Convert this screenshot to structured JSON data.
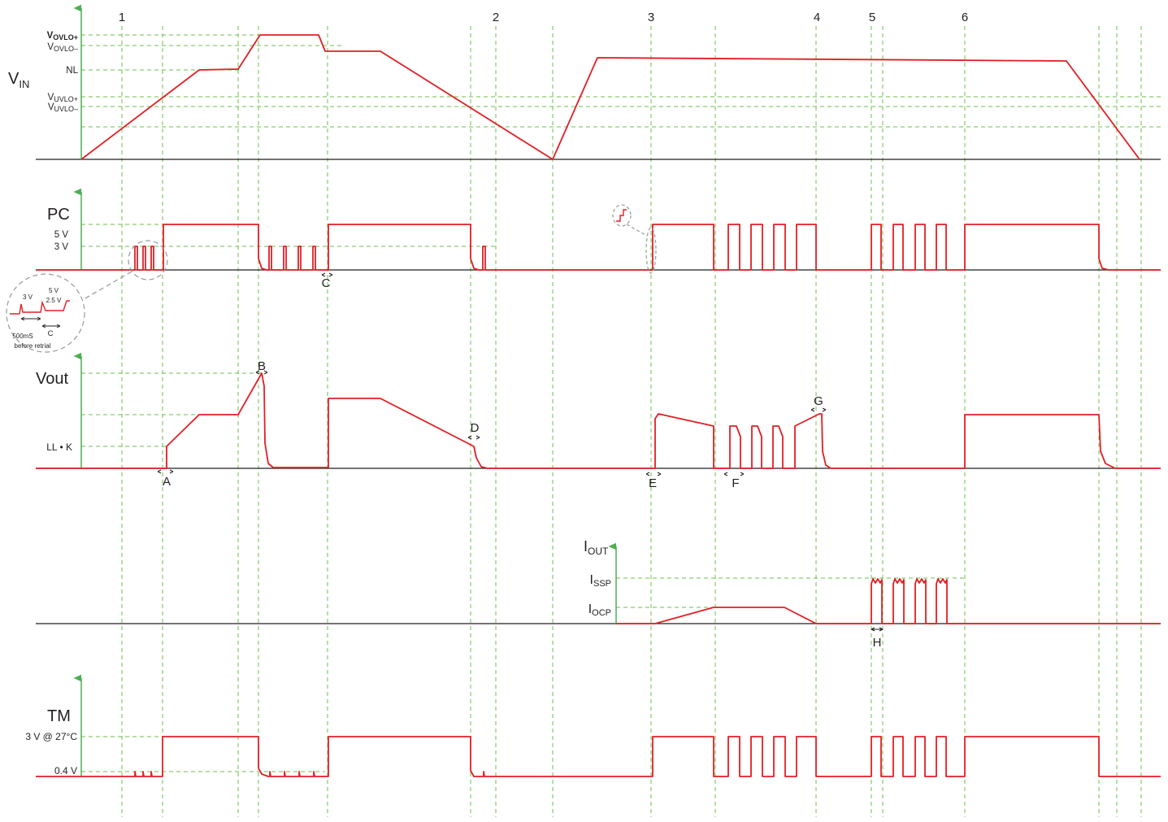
{
  "colors": {
    "trace": "#e31e24",
    "grid": "#6cbf4b",
    "axis": "#4caf50",
    "baseline": "#231f20",
    "callout": "#999999",
    "text": "#231f20"
  },
  "event_numbers": [
    "1",
    "2",
    "3",
    "4",
    "5",
    "6"
  ],
  "vin": {
    "name": "V",
    "name_sub": "IN",
    "levels": [
      {
        "main": "V",
        "sub": "OVLO+"
      },
      {
        "main": "V",
        "sub": "OVLO–"
      },
      {
        "main": "NL",
        "sub": ""
      },
      {
        "main": "V",
        "sub": "UVLO+"
      },
      {
        "main": "V",
        "sub": "UVLO–"
      }
    ]
  },
  "pc": {
    "name": "PC",
    "levels": [
      "5 V",
      "3 V"
    ],
    "markers": [
      "C"
    ],
    "inset": {
      "l3": "3 V",
      "l5": "5 V",
      "l25": "2.5 V",
      "c": "C",
      "n1": "500mS",
      "n2": "before retrial"
    }
  },
  "vout": {
    "name": "Vout",
    "levels": [
      "LL • K"
    ],
    "markers": [
      "A",
      "B",
      "D",
      "E",
      "F",
      "G"
    ]
  },
  "iout": {
    "name": "I",
    "name_sub": "OUT",
    "levels": [
      {
        "main": "I",
        "sub": "SSP"
      },
      {
        "main": "I",
        "sub": "OCP"
      }
    ],
    "markers": [
      "H"
    ]
  },
  "tm": {
    "name": "TM",
    "levels": [
      "3 V @ 27°C",
      "0.4 V"
    ]
  }
}
